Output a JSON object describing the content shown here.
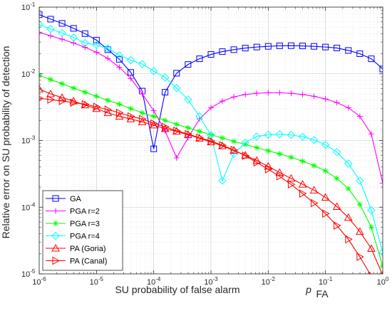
{
  "chart_data": {
    "type": "line",
    "xlabel": "SU probability of false alarm",
    "xlabel_symbol": "p",
    "xlabel_subscript": "FA",
    "ylabel": "Relative error on SU probability of detection",
    "x_scale": "log",
    "y_scale": "log",
    "xlim": [
      1e-06,
      1
    ],
    "ylim": [
      1e-05,
      0.1
    ],
    "x_ticks": [
      {
        "value": 1e-06,
        "base": "10",
        "exp": "-6"
      },
      {
        "value": 1e-05,
        "base": "10",
        "exp": "-5"
      },
      {
        "value": 0.0001,
        "base": "10",
        "exp": "-4"
      },
      {
        "value": 0.001,
        "base": "10",
        "exp": "-3"
      },
      {
        "value": 0.01,
        "base": "10",
        "exp": "-2"
      },
      {
        "value": 0.1,
        "base": "10",
        "exp": "-1"
      },
      {
        "value": 1,
        "base": "10",
        "exp": "0"
      }
    ],
    "y_ticks": [
      {
        "value": 1e-05,
        "base": "10",
        "exp": "-5"
      },
      {
        "value": 0.0001,
        "base": "10",
        "exp": "-4"
      },
      {
        "value": 0.001,
        "base": "10",
        "exp": "-3"
      },
      {
        "value": 0.01,
        "base": "10",
        "exp": "-2"
      },
      {
        "value": 0.1,
        "base": "10",
        "exp": "-1"
      }
    ],
    "grid": true,
    "legend_position": "lower-left",
    "series": [
      {
        "name": "GA",
        "color": "#0000ff",
        "marker": "square",
        "x": [
          1e-06,
          1.58e-06,
          2.51e-06,
          3.98e-06,
          6.31e-06,
          1e-05,
          1.58e-05,
          2.51e-05,
          3.98e-05,
          6.31e-05,
          0.0001,
          0.000158,
          0.000251,
          0.000398,
          0.000631,
          0.001,
          0.00158,
          0.00251,
          0.00398,
          0.00631,
          0.01,
          0.0158,
          0.0251,
          0.0398,
          0.0631,
          0.1,
          0.158,
          0.251,
          0.398,
          0.631,
          1
        ],
        "y": [
          0.077,
          0.066,
          0.057,
          0.048,
          0.04,
          0.032,
          0.023,
          0.0165,
          0.0105,
          0.0055,
          0.00075,
          0.0053,
          0.0102,
          0.0138,
          0.0168,
          0.0195,
          0.0215,
          0.023,
          0.0243,
          0.0252,
          0.0258,
          0.0263,
          0.0264,
          0.0262,
          0.0258,
          0.0252,
          0.0244,
          0.0224,
          0.02,
          0.0168,
          0.0118
        ]
      },
      {
        "name": "PGA r=2",
        "color": "#ff00ff",
        "marker": "plus",
        "x": [
          1e-06,
          1.58e-06,
          2.51e-06,
          3.98e-06,
          6.31e-06,
          1e-05,
          1.58e-05,
          2.51e-05,
          3.98e-05,
          6.31e-05,
          0.0001,
          0.000158,
          0.000251,
          0.000398,
          0.000631,
          0.001,
          0.00158,
          0.00251,
          0.00398,
          0.00631,
          0.01,
          0.0158,
          0.0251,
          0.0398,
          0.0631,
          0.1,
          0.158,
          0.251,
          0.398,
          0.631,
          1
        ],
        "y": [
          0.042,
          0.037,
          0.033,
          0.029,
          0.025,
          0.021,
          0.017,
          0.0125,
          0.0085,
          0.005,
          0.0028,
          0.0014,
          0.00055,
          0.0011,
          0.0021,
          0.0031,
          0.0039,
          0.0045,
          0.0049,
          0.0051,
          0.0052,
          0.0052,
          0.0051,
          0.0049,
          0.0046,
          0.0042,
          0.0037,
          0.0031,
          0.0023,
          0.00125,
          0.00023
        ]
      },
      {
        "name": "PGA r=3",
        "color": "#00ff00",
        "marker": "asterisk",
        "x": [
          1e-06,
          1.58e-06,
          2.51e-06,
          3.98e-06,
          6.31e-06,
          1e-05,
          1.58e-05,
          2.51e-05,
          3.98e-05,
          6.31e-05,
          0.0001,
          0.000158,
          0.000251,
          0.000398,
          0.000631,
          0.001,
          0.00158,
          0.00251,
          0.00398,
          0.00631,
          0.01,
          0.0158,
          0.0251,
          0.0398,
          0.0631,
          0.1,
          0.158,
          0.251,
          0.398,
          0.631,
          1
        ],
        "y": [
          0.0095,
          0.0082,
          0.0071,
          0.0061,
          0.0053,
          0.0046,
          0.004,
          0.0035,
          0.003,
          0.0026,
          0.0023,
          0.002,
          0.00175,
          0.00155,
          0.00137,
          0.00122,
          0.00109,
          0.00097,
          0.00087,
          0.00078,
          0.0007,
          0.00063,
          0.00056,
          0.00049,
          0.00042,
          0.00035,
          0.00027,
          0.00019,
          0.00011,
          5e-05,
          1.3e-05
        ]
      },
      {
        "name": "PGA r=4",
        "color": "#00ffff",
        "marker": "diamond",
        "x": [
          1e-06,
          1.58e-06,
          2.51e-06,
          3.98e-06,
          6.31e-06,
          1e-05,
          1.58e-05,
          2.51e-05,
          3.98e-05,
          6.31e-05,
          0.0001,
          0.000158,
          0.000251,
          0.000398,
          0.000631,
          0.001,
          0.00158,
          0.00251,
          0.00398,
          0.00631,
          0.01,
          0.0158,
          0.0251,
          0.0398,
          0.0631,
          0.1,
          0.158,
          0.251,
          0.398,
          0.631,
          1
        ],
        "y": [
          0.055,
          0.047,
          0.041,
          0.035,
          0.029,
          0.027,
          0.024,
          0.019,
          0.016,
          0.014,
          0.011,
          0.0088,
          0.0061,
          0.0041,
          0.0023,
          0.0012,
          0.00025,
          0.00063,
          0.00093,
          0.00115,
          0.00122,
          0.00124,
          0.00121,
          0.00114,
          0.00102,
          0.00086,
          0.00067,
          0.00045,
          0.00025,
          9e-05,
          2.1e-05
        ]
      },
      {
        "name": "PA (Goria)",
        "color": "#ff0000",
        "marker": "triangle-up",
        "x": [
          1e-06,
          1.58e-06,
          2.51e-06,
          3.98e-06,
          6.31e-06,
          1e-05,
          1.58e-05,
          2.51e-05,
          3.98e-05,
          6.31e-05,
          0.0001,
          0.000158,
          0.000251,
          0.000398,
          0.000631,
          0.001,
          0.00158,
          0.00251,
          0.00398,
          0.00631,
          0.01,
          0.0158,
          0.0251,
          0.0398,
          0.0631,
          0.1,
          0.158,
          0.251,
          0.398,
          0.631,
          1
        ],
        "y": [
          0.0059,
          0.005,
          0.0044,
          0.0039,
          0.0034,
          0.003,
          0.0026,
          0.0023,
          0.0021,
          0.0019,
          0.0017,
          0.0015,
          0.00137,
          0.00122,
          0.00108,
          0.00095,
          0.00083,
          0.00071,
          0.0006,
          0.0005,
          0.00041,
          0.00033,
          0.00027,
          0.00022,
          0.00018,
          0.00014,
          0.000102,
          7e-05,
          4.3e-05,
          2.4e-05,
          9.5e-06
        ]
      },
      {
        "name": "PA (Canal)",
        "color": "#ff0000",
        "marker": "triangle-right",
        "x": [
          1e-06,
          1.58e-06,
          2.51e-06,
          3.98e-06,
          6.31e-06,
          1e-05,
          1.58e-05,
          2.51e-05,
          3.98e-05,
          6.31e-05,
          0.0001,
          0.000158,
          0.000251,
          0.000398,
          0.000631,
          0.001,
          0.00158,
          0.00251,
          0.00398,
          0.00631,
          0.01,
          0.0158,
          0.0251,
          0.0398,
          0.0631,
          0.1,
          0.158,
          0.251,
          0.398,
          0.631,
          1
        ],
        "y": [
          0.0043,
          0.0041,
          0.0039,
          0.0037,
          0.0035,
          0.0032,
          0.0029,
          0.0026,
          0.0023,
          0.0021,
          0.0018,
          0.0016,
          0.0014,
          0.00125,
          0.0011,
          0.00098,
          0.00085,
          0.00072,
          0.00059,
          0.00047,
          0.00037,
          0.00029,
          0.00022,
          0.00016,
          0.000115,
          8e-05,
          5.3e-05,
          3.3e-05,
          1.8e-05,
          9.3e-06,
          4.5e-06
        ]
      }
    ]
  }
}
